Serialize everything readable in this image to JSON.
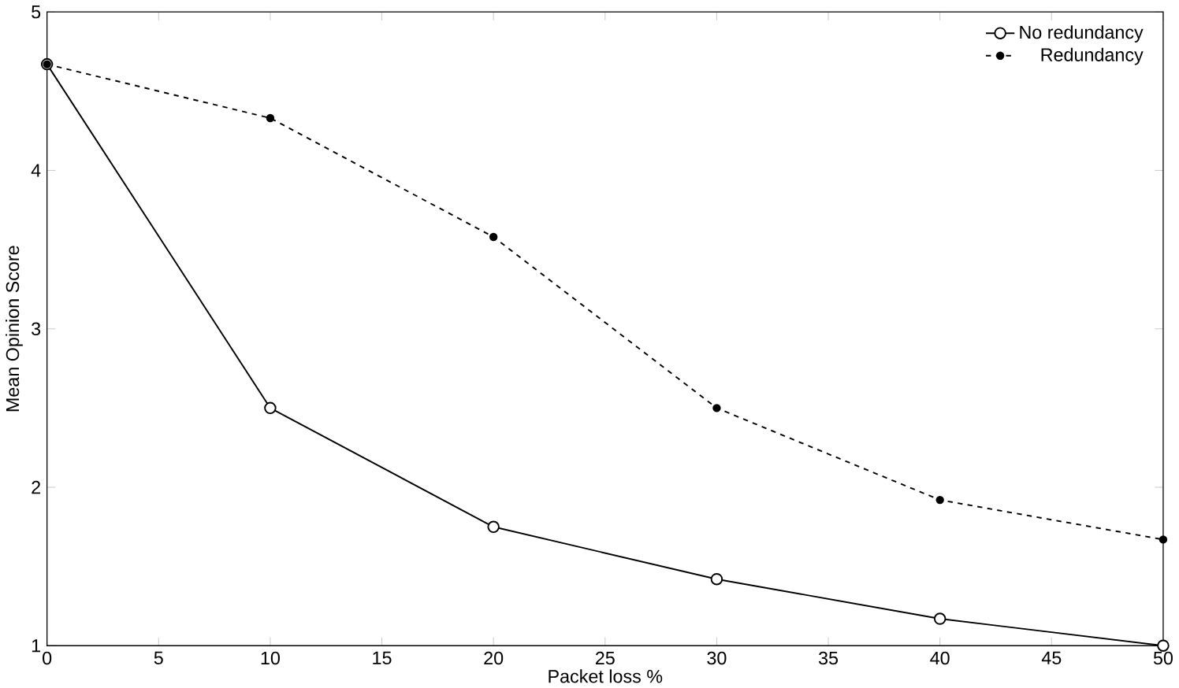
{
  "chart_data": {
    "type": "line",
    "xlabel": "Packet loss %",
    "ylabel": "Mean Opinion Score",
    "x": [
      0,
      10,
      20,
      30,
      40,
      50
    ],
    "xlim": [
      0,
      50
    ],
    "xticks": [
      0,
      5,
      10,
      15,
      20,
      25,
      30,
      35,
      40,
      45,
      50
    ],
    "ylim": [
      1,
      5
    ],
    "yticks": [
      1,
      2,
      3,
      4,
      5
    ],
    "grid": false,
    "legend": "top right",
    "marker": "circle",
    "series": [
      {
        "name": "No redundancy",
        "color": "#000000",
        "line_style": "solid",
        "values": [
          4.67,
          2.5,
          1.75,
          1.42,
          1.17,
          1.0
        ]
      },
      {
        "name": "Redundancy",
        "color": "#000000",
        "line_style": "dashed",
        "values": [
          4.67,
          4.33,
          3.58,
          2.5,
          1.92,
          1.67
        ]
      }
    ]
  }
}
